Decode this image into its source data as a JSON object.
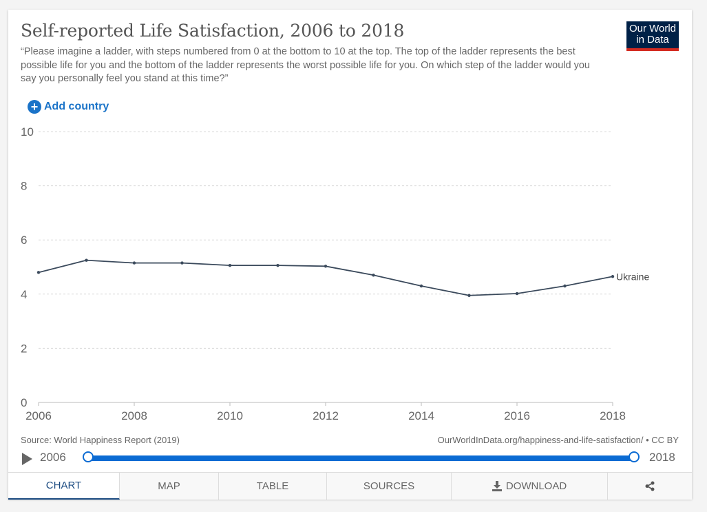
{
  "header": {
    "title": "Self-reported Life Satisfaction, 2006 to 2018",
    "subtitle": "“Please imagine a ladder, with steps numbered from 0 at the bottom to 10 at the top. The top of the ladder represents the best possible life for you and the bottom of the ladder represents the worst possible life for you. On which step of the ladder would you say you personally feel you stand at this time?”",
    "logo_line1": "Our World",
    "logo_line2": "in Data"
  },
  "controls": {
    "add_country_label": "Add country"
  },
  "chart_data": {
    "type": "line",
    "x": [
      2006,
      2007,
      2008,
      2009,
      2010,
      2011,
      2012,
      2013,
      2014,
      2015,
      2016,
      2017,
      2018
    ],
    "series": [
      {
        "name": "Ukraine",
        "values": [
          4.8,
          5.25,
          5.15,
          5.15,
          5.06,
          5.06,
          5.03,
          4.7,
          4.3,
          3.95,
          4.02,
          4.3,
          4.65
        ],
        "color": "#3b4a5c"
      }
    ],
    "xticks": [
      "2006",
      "2008",
      "2010",
      "2012",
      "2014",
      "2016",
      "2018"
    ],
    "yticks": [
      "0",
      "2",
      "4",
      "6",
      "8",
      "10"
    ],
    "xlim": [
      2006,
      2018
    ],
    "ylim": [
      0,
      10
    ],
    "grid": "horizontal dashed"
  },
  "footer": {
    "source": "Source: World Happiness Report (2019)",
    "url": "OurWorldInData.org/happiness-and-life-satisfaction/ • CC BY"
  },
  "timeline": {
    "start": "2006",
    "end": "2018"
  },
  "tabs": {
    "chart": "CHART",
    "map": "MAP",
    "table": "TABLE",
    "sources": "SOURCES",
    "download": "DOWNLOAD"
  },
  "colors": {
    "accent": "#1a73c8",
    "line": "#3b4a5c",
    "logo_bg": "#002147",
    "logo_bar": "#d42b21"
  }
}
